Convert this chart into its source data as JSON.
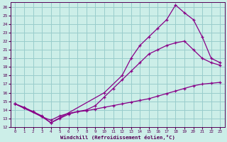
{
  "xlabel": "Windchill (Refroidissement éolien,°C)",
  "bg_color": "#cceee8",
  "line_color": "#880088",
  "grid_color": "#99cccc",
  "xlim": [
    -0.5,
    23.5
  ],
  "ylim": [
    12,
    26.5
  ],
  "xticks": [
    0,
    1,
    2,
    3,
    4,
    5,
    6,
    7,
    8,
    9,
    10,
    11,
    12,
    13,
    14,
    15,
    16,
    17,
    18,
    19,
    20,
    21,
    22,
    23
  ],
  "yticks": [
    12,
    13,
    14,
    15,
    16,
    17,
    18,
    19,
    20,
    21,
    22,
    23,
    24,
    25,
    26
  ],
  "line1_x": [
    0,
    1,
    2,
    3,
    4,
    5,
    6,
    7,
    8,
    9,
    10,
    11,
    12,
    13,
    14,
    15,
    16,
    17,
    18,
    19,
    20,
    21,
    22,
    23
  ],
  "line1_y": [
    14.7,
    14.3,
    13.8,
    13.2,
    12.8,
    13.3,
    13.6,
    13.8,
    13.9,
    14.1,
    14.3,
    14.5,
    14.7,
    14.9,
    15.1,
    15.3,
    15.6,
    15.9,
    16.2,
    16.5,
    16.8,
    17.0,
    17.1,
    17.2
  ],
  "line2_x": [
    0,
    1,
    2,
    3,
    4,
    5,
    6,
    7,
    8,
    9,
    10,
    11,
    12,
    13,
    14,
    15,
    16,
    17,
    18,
    19,
    20,
    21,
    22,
    23
  ],
  "line2_y": [
    14.7,
    14.2,
    13.8,
    13.3,
    12.5,
    13.0,
    13.5,
    13.8,
    14.0,
    14.5,
    15.5,
    16.5,
    17.5,
    18.5,
    19.5,
    20.5,
    21.0,
    21.5,
    21.8,
    22.0,
    21.0,
    20.0,
    19.5,
    19.2
  ],
  "line3_x": [
    0,
    3,
    4,
    10,
    12,
    13,
    14,
    15,
    16,
    17,
    18,
    19,
    20,
    21,
    22,
    23
  ],
  "line3_y": [
    14.7,
    13.2,
    12.5,
    16.0,
    18.0,
    20.0,
    21.5,
    22.5,
    23.5,
    24.5,
    26.2,
    25.3,
    24.5,
    22.5,
    20.0,
    19.5
  ]
}
